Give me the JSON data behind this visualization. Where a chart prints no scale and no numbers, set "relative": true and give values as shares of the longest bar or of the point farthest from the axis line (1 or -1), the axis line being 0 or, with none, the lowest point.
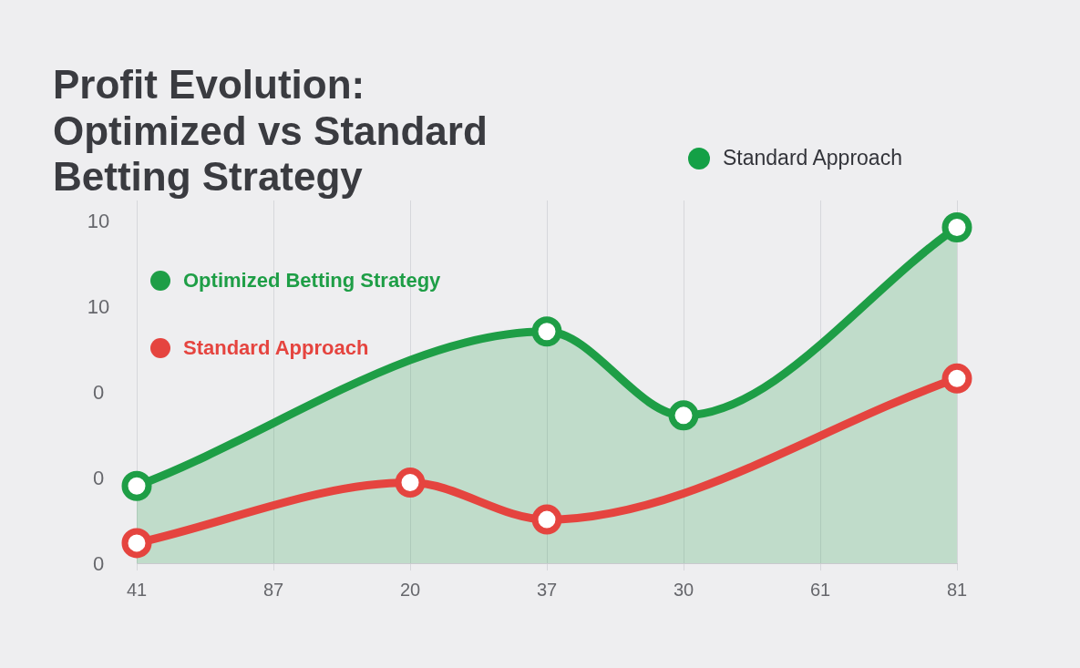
{
  "chart_data": {
    "type": "line",
    "title": "Profit Evolution: Optimized vs Standard Betting Strategy",
    "categories": [
      "41",
      "87",
      "20",
      "37",
      "30",
      "61",
      "81"
    ],
    "relative": true,
    "series": [
      {
        "name": "Optimized Betting Strategy",
        "type": "area",
        "color": "#1e9e46",
        "values": [
          0.23,
          null,
          null,
          0.69,
          0.44,
          null,
          1
        ]
      },
      {
        "name": "Standard Approach",
        "type": "line",
        "color": "#e5443f",
        "values": [
          0.06,
          null,
          0.24,
          0.13,
          null,
          null,
          0.55
        ]
      }
    ],
    "annotations": [
      "Standard Approach",
      "10",
      "10",
      "0",
      "0",
      "0"
    ],
    "grid": "x",
    "legend": "top left",
    "marker": "circle",
    "line_style": "solid"
  }
}
